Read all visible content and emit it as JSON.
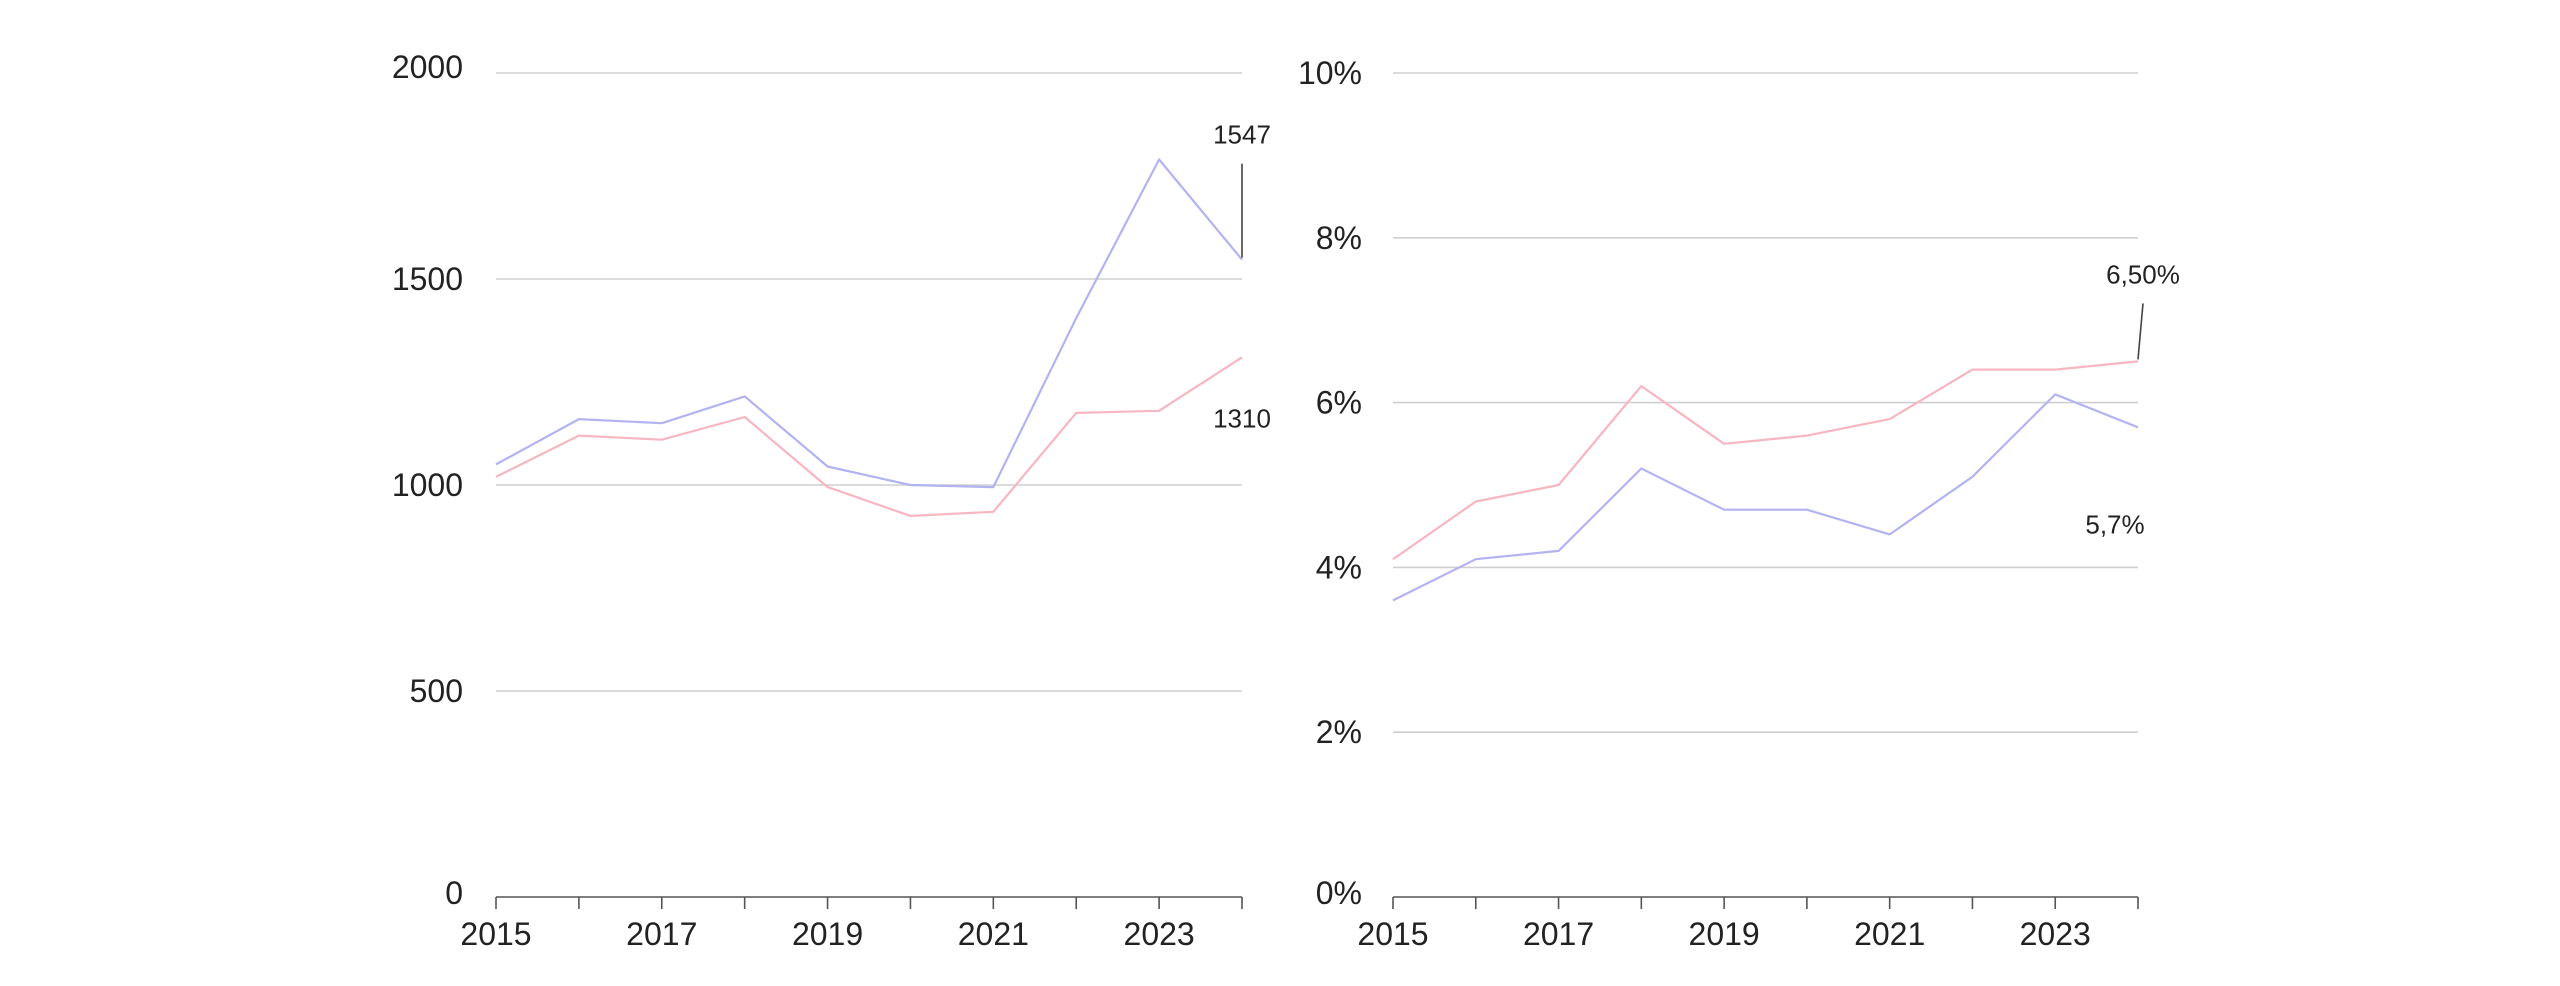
{
  "chart_data": [
    {
      "type": "line",
      "x": [
        2015,
        2016,
        2017,
        2018,
        2019,
        2020,
        2021,
        2022,
        2023,
        2024
      ],
      "xticks": [
        "2015",
        "2017",
        "2019",
        "2021",
        "2023"
      ],
      "ylim": [
        0,
        2000
      ],
      "yticks": [
        "0",
        "500",
        "1000",
        "1500",
        "2000"
      ],
      "grid": true,
      "series": [
        {
          "color": "#b3b3f2",
          "values": [
            1050,
            1160,
            1150,
            1215,
            1045,
            1000,
            995,
            1405,
            1790,
            1547
          ]
        },
        {
          "color": "#f7b6c2",
          "values": [
            1020,
            1120,
            1110,
            1165,
            995,
            925,
            935,
            1175,
            1180,
            1310
          ]
        }
      ],
      "annotations": [
        {
          "text": "1547",
          "series": 0,
          "index": 9
        },
        {
          "text": "1310",
          "series": 1,
          "index": 9
        }
      ]
    },
    {
      "type": "line",
      "x": [
        2015,
        2016,
        2017,
        2018,
        2019,
        2020,
        2021,
        2022,
        2023,
        2024
      ],
      "xticks": [
        "2015",
        "2017",
        "2019",
        "2021",
        "2023"
      ],
      "ylim": [
        0,
        10
      ],
      "yticks": [
        "0%",
        "2%",
        "4%",
        "6%",
        "8%",
        "10%"
      ],
      "grid": true,
      "series": [
        {
          "color": "#f7b6c2",
          "values": [
            4.1,
            4.8,
            5.0,
            6.2,
            5.5,
            5.6,
            5.8,
            6.4,
            6.4,
            6.5
          ]
        },
        {
          "color": "#b3b3f2",
          "values": [
            3.6,
            4.1,
            4.2,
            5.2,
            4.7,
            4.7,
            4.4,
            5.1,
            6.1,
            5.7
          ]
        }
      ],
      "annotations": [
        {
          "text": "6,50%",
          "series": 0,
          "index": 9
        },
        {
          "text": "5,7%",
          "series": 1,
          "index": 9
        }
      ]
    }
  ]
}
